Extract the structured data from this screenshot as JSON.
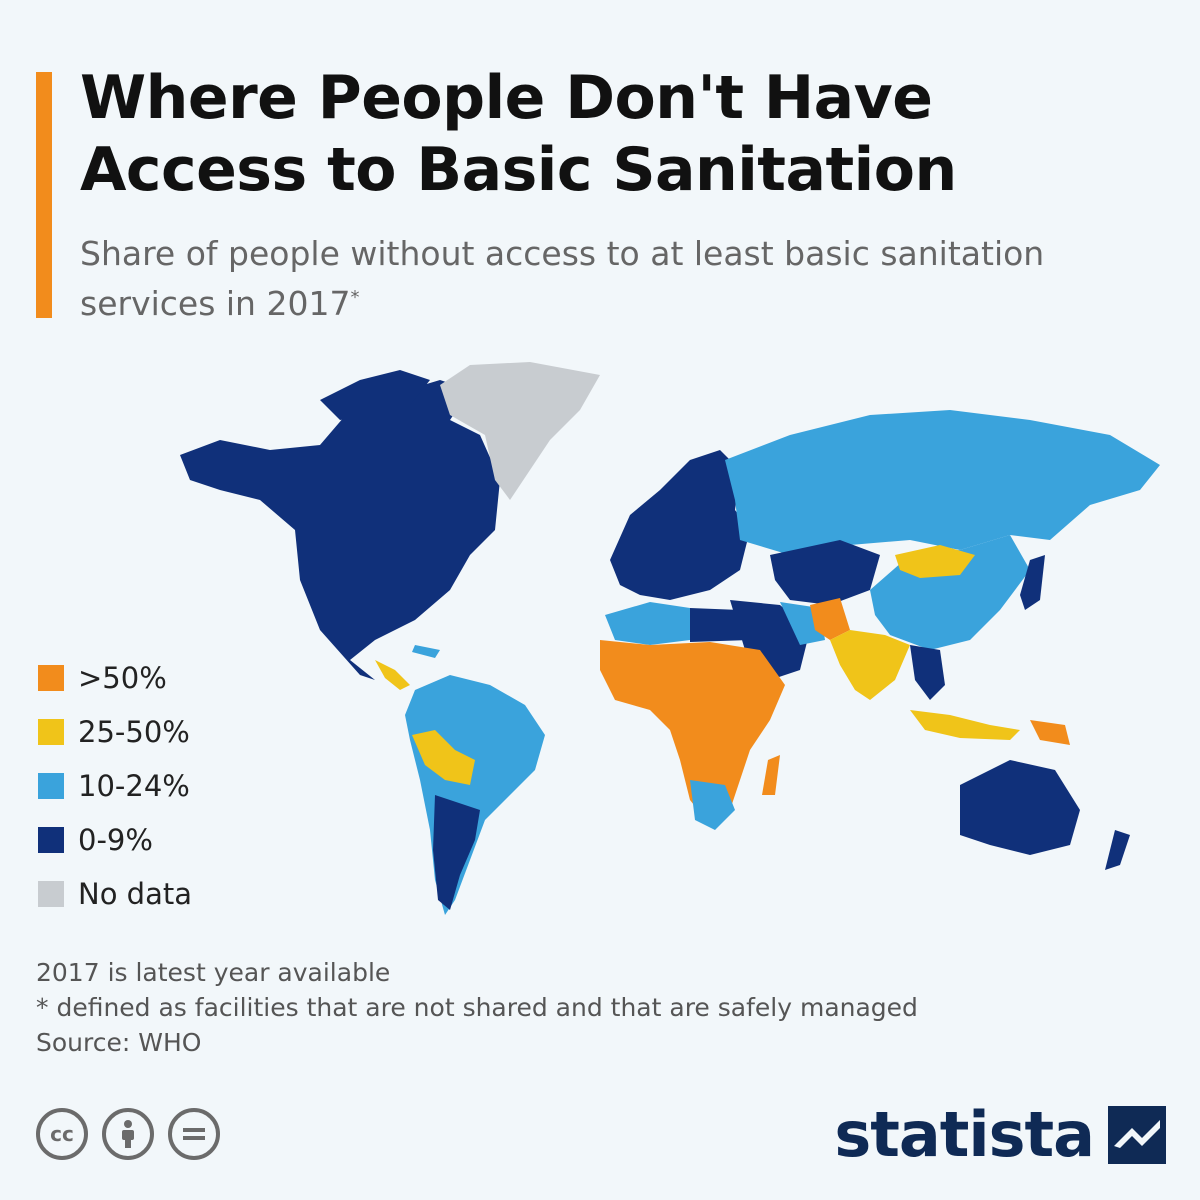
{
  "header": {
    "title": "Where People Don't Have Access to Basic Sanitation",
    "subtitle": "Share of people without access to at least basic sanitation services in 2017",
    "subtitle_mark": "*"
  },
  "legend": [
    {
      "label": ">50%",
      "color": "#f28c1c"
    },
    {
      "label": "25-50%",
      "color": "#f0c419"
    },
    {
      "label": "10-24%",
      "color": "#3aa3dc"
    },
    {
      "label": "0-9%",
      "color": "#10307a"
    },
    {
      "label": "No data",
      "color": "#c8ccd0"
    }
  ],
  "map": {
    "type": "choropleth",
    "background": "#f2f7fa",
    "regions": [
      {
        "name": "North America",
        "category": "0-9%"
      },
      {
        "name": "Greenland",
        "category": "No data"
      },
      {
        "name": "South America",
        "category": "10-24%"
      },
      {
        "name": "Europe",
        "category": "0-9%"
      },
      {
        "name": "Russia",
        "category": "10-24%"
      },
      {
        "name": "Sub-Saharan Africa",
        "category": ">50%"
      },
      {
        "name": "South Asia",
        "category": "25-50%"
      },
      {
        "name": "China",
        "category": "10-24%"
      },
      {
        "name": "Mongolia",
        "category": "25-50%"
      },
      {
        "name": "Australia",
        "category": "0-9%"
      }
    ]
  },
  "notes": {
    "note1": "2017 is latest year available",
    "note2": "* defined as facilities that are not shared and that are safely managed",
    "source": "Source: WHO"
  },
  "footer": {
    "brand": "statista",
    "cc_label": "cc",
    "icons": [
      "creative-commons-icon",
      "attribution-icon",
      "no-derivatives-icon"
    ]
  }
}
